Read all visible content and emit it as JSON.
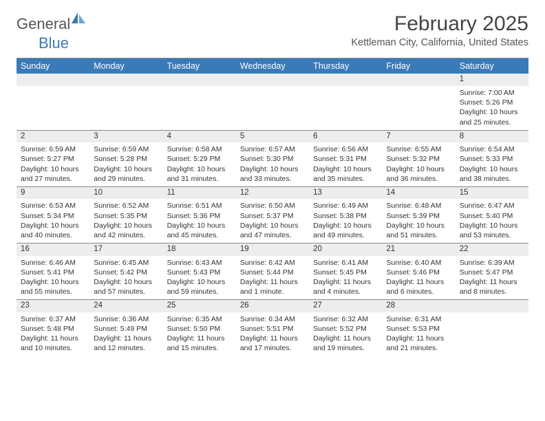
{
  "branding": {
    "logo_general": "General",
    "logo_blue": "Blue",
    "brand_color": "#3a7ab8",
    "text_color": "#555555"
  },
  "header": {
    "month_title": "February 2025",
    "location": "Kettleman City, California, United States"
  },
  "styling": {
    "header_row_bg": "#3a7ab8",
    "header_row_text": "#ffffff",
    "daynum_bg": "#ededed",
    "body_bg": "#ffffff",
    "border_color": "#888888",
    "title_fontsize": 30,
    "location_fontsize": 14.5,
    "dayheader_fontsize": 12.5,
    "daynum_fontsize": 11.5,
    "detail_fontsize": 10.5
  },
  "day_headers": [
    "Sunday",
    "Monday",
    "Tuesday",
    "Wednesday",
    "Thursday",
    "Friday",
    "Saturday"
  ],
  "weeks": [
    {
      "nums": [
        "",
        "",
        "",
        "",
        "",
        "",
        "1"
      ],
      "sunrise": [
        "",
        "",
        "",
        "",
        "",
        "",
        "Sunrise: 7:00 AM"
      ],
      "sunset": [
        "",
        "",
        "",
        "",
        "",
        "",
        "Sunset: 5:26 PM"
      ],
      "day1": [
        "",
        "",
        "",
        "",
        "",
        "",
        "Daylight: 10 hours"
      ],
      "day2": [
        "",
        "",
        "",
        "",
        "",
        "",
        "and 25 minutes."
      ]
    },
    {
      "nums": [
        "2",
        "3",
        "4",
        "5",
        "6",
        "7",
        "8"
      ],
      "sunrise": [
        "Sunrise: 6:59 AM",
        "Sunrise: 6:59 AM",
        "Sunrise: 6:58 AM",
        "Sunrise: 6:57 AM",
        "Sunrise: 6:56 AM",
        "Sunrise: 6:55 AM",
        "Sunrise: 6:54 AM"
      ],
      "sunset": [
        "Sunset: 5:27 PM",
        "Sunset: 5:28 PM",
        "Sunset: 5:29 PM",
        "Sunset: 5:30 PM",
        "Sunset: 5:31 PM",
        "Sunset: 5:32 PM",
        "Sunset: 5:33 PM"
      ],
      "day1": [
        "Daylight: 10 hours",
        "Daylight: 10 hours",
        "Daylight: 10 hours",
        "Daylight: 10 hours",
        "Daylight: 10 hours",
        "Daylight: 10 hours",
        "Daylight: 10 hours"
      ],
      "day2": [
        "and 27 minutes.",
        "and 29 minutes.",
        "and 31 minutes.",
        "and 33 minutes.",
        "and 35 minutes.",
        "and 36 minutes.",
        "and 38 minutes."
      ]
    },
    {
      "nums": [
        "9",
        "10",
        "11",
        "12",
        "13",
        "14",
        "15"
      ],
      "sunrise": [
        "Sunrise: 6:53 AM",
        "Sunrise: 6:52 AM",
        "Sunrise: 6:51 AM",
        "Sunrise: 6:50 AM",
        "Sunrise: 6:49 AM",
        "Sunrise: 6:48 AM",
        "Sunrise: 6:47 AM"
      ],
      "sunset": [
        "Sunset: 5:34 PM",
        "Sunset: 5:35 PM",
        "Sunset: 5:36 PM",
        "Sunset: 5:37 PM",
        "Sunset: 5:38 PM",
        "Sunset: 5:39 PM",
        "Sunset: 5:40 PM"
      ],
      "day1": [
        "Daylight: 10 hours",
        "Daylight: 10 hours",
        "Daylight: 10 hours",
        "Daylight: 10 hours",
        "Daylight: 10 hours",
        "Daylight: 10 hours",
        "Daylight: 10 hours"
      ],
      "day2": [
        "and 40 minutes.",
        "and 42 minutes.",
        "and 45 minutes.",
        "and 47 minutes.",
        "and 49 minutes.",
        "and 51 minutes.",
        "and 53 minutes."
      ]
    },
    {
      "nums": [
        "16",
        "17",
        "18",
        "19",
        "20",
        "21",
        "22"
      ],
      "sunrise": [
        "Sunrise: 6:46 AM",
        "Sunrise: 6:45 AM",
        "Sunrise: 6:43 AM",
        "Sunrise: 6:42 AM",
        "Sunrise: 6:41 AM",
        "Sunrise: 6:40 AM",
        "Sunrise: 6:39 AM"
      ],
      "sunset": [
        "Sunset: 5:41 PM",
        "Sunset: 5:42 PM",
        "Sunset: 5:43 PM",
        "Sunset: 5:44 PM",
        "Sunset: 5:45 PM",
        "Sunset: 5:46 PM",
        "Sunset: 5:47 PM"
      ],
      "day1": [
        "Daylight: 10 hours",
        "Daylight: 10 hours",
        "Daylight: 10 hours",
        "Daylight: 11 hours",
        "Daylight: 11 hours",
        "Daylight: 11 hours",
        "Daylight: 11 hours"
      ],
      "day2": [
        "and 55 minutes.",
        "and 57 minutes.",
        "and 59 minutes.",
        "and 1 minute.",
        "and 4 minutes.",
        "and 6 minutes.",
        "and 8 minutes."
      ]
    },
    {
      "nums": [
        "23",
        "24",
        "25",
        "26",
        "27",
        "28",
        ""
      ],
      "sunrise": [
        "Sunrise: 6:37 AM",
        "Sunrise: 6:36 AM",
        "Sunrise: 6:35 AM",
        "Sunrise: 6:34 AM",
        "Sunrise: 6:32 AM",
        "Sunrise: 6:31 AM",
        ""
      ],
      "sunset": [
        "Sunset: 5:48 PM",
        "Sunset: 5:49 PM",
        "Sunset: 5:50 PM",
        "Sunset: 5:51 PM",
        "Sunset: 5:52 PM",
        "Sunset: 5:53 PM",
        ""
      ],
      "day1": [
        "Daylight: 11 hours",
        "Daylight: 11 hours",
        "Daylight: 11 hours",
        "Daylight: 11 hours",
        "Daylight: 11 hours",
        "Daylight: 11 hours",
        ""
      ],
      "day2": [
        "and 10 minutes.",
        "and 12 minutes.",
        "and 15 minutes.",
        "and 17 minutes.",
        "and 19 minutes.",
        "and 21 minutes.",
        ""
      ]
    }
  ]
}
